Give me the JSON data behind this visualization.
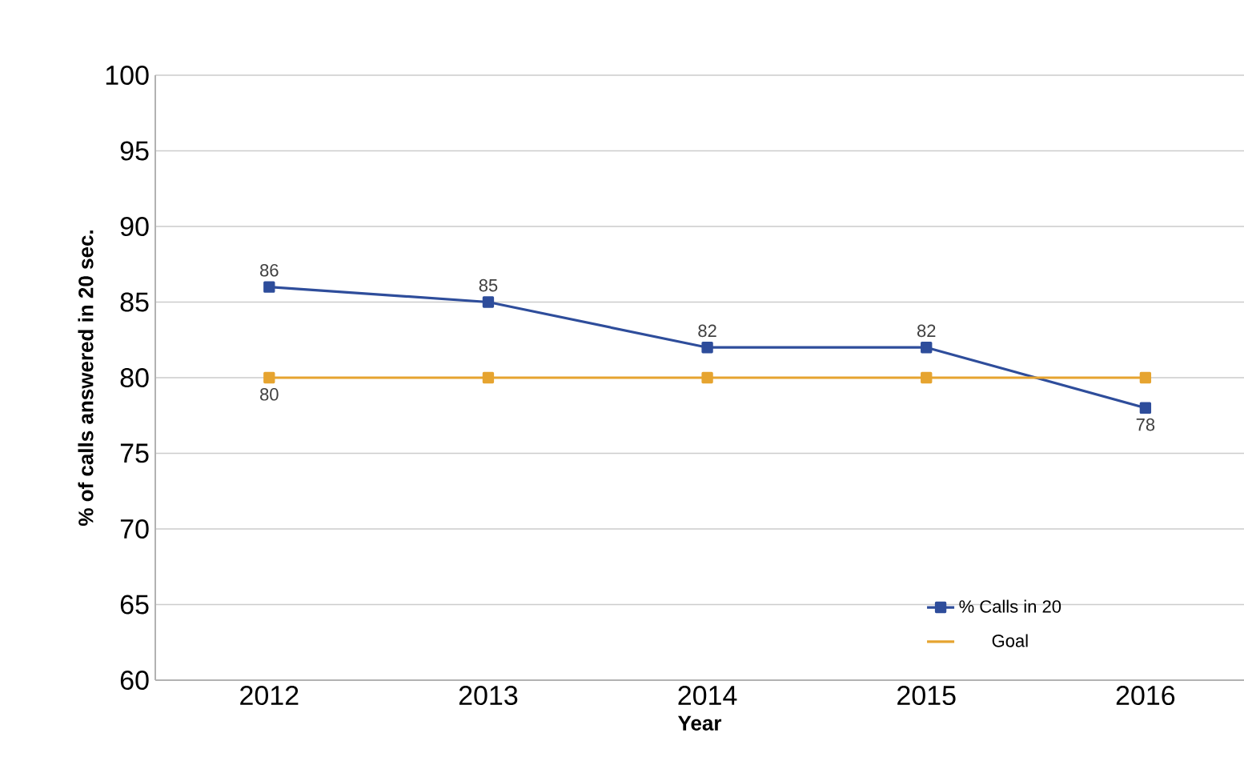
{
  "chart_data": {
    "type": "line",
    "ylabel": "% of calls answered in 20 sec.",
    "xlabel": "Year",
    "categories": [
      "2012",
      "2013",
      "2014",
      "2015",
      "2016"
    ],
    "series": [
      {
        "name": "% Calls in 20",
        "color": "#2e4d9b",
        "values": [
          86,
          85,
          82,
          82,
          78
        ],
        "value_labels": [
          "86",
          "85",
          "82",
          "82",
          "78"
        ]
      },
      {
        "name": "Goal",
        "color": "#e6a430",
        "values": [
          80,
          80,
          80,
          80,
          80
        ],
        "value_labels": [
          "80",
          null,
          null,
          null,
          null
        ]
      }
    ],
    "ylim": [
      60,
      100
    ],
    "yticks": [
      60,
      65,
      70,
      75,
      80,
      85,
      90,
      95,
      100
    ],
    "grid": "y",
    "legend": "bottom right",
    "marker": "square",
    "line_style": "solid"
  }
}
